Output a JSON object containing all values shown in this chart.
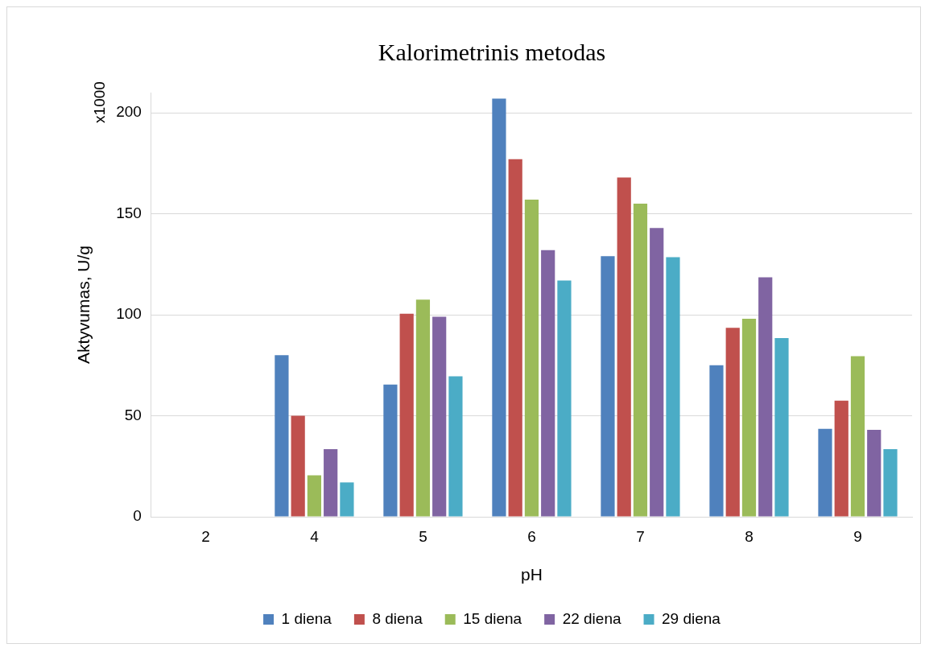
{
  "chart_data": {
    "type": "bar",
    "title": "Kalorimetrinis metodas",
    "xlabel": "pH",
    "ylabel": "Aktyvumas, U/g",
    "annotations": [
      "x1000"
    ],
    "categories": [
      "2",
      "4",
      "5",
      "6",
      "7",
      "8",
      "9"
    ],
    "series": [
      {
        "name": "1 diena",
        "color": "#4f81bd",
        "values": [
          null,
          80,
          65.5,
          207,
          129,
          75,
          43.5
        ]
      },
      {
        "name": "8 diena",
        "color": "#c0504d",
        "values": [
          null,
          50,
          100.5,
          177,
          168,
          93.5,
          57.5
        ]
      },
      {
        "name": "15 diena",
        "color": "#9bbb59",
        "values": [
          null,
          20.5,
          107.5,
          157,
          155,
          98,
          79.5
        ]
      },
      {
        "name": "22 diena",
        "color": "#8064a2",
        "values": [
          null,
          33.5,
          99,
          132,
          143,
          118.5,
          43
        ]
      },
      {
        "name": "29 diena",
        "color": "#4bacc6",
        "values": [
          null,
          17,
          69.5,
          117,
          128.5,
          88.5,
          33.5
        ]
      }
    ],
    "ylim": [
      0,
      210
    ],
    "yticks": [
      0,
      50,
      100,
      150,
      200
    ],
    "grid": "y",
    "legend": "bottom"
  }
}
